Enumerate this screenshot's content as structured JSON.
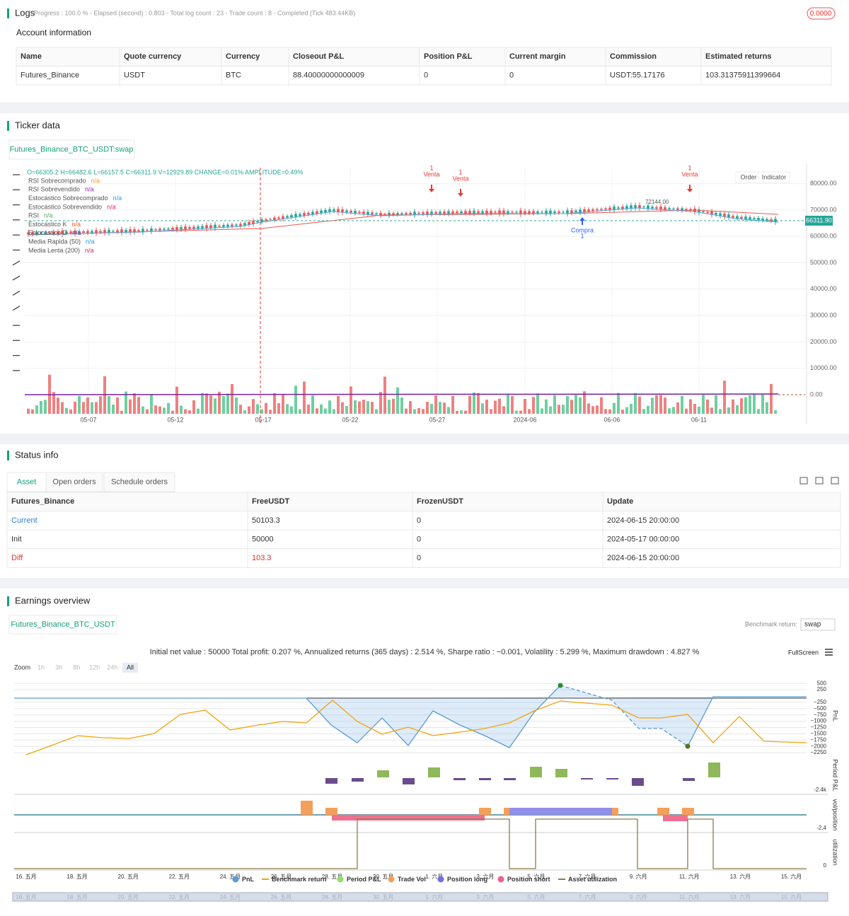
{
  "logs": {
    "title": "Logs",
    "status": "Progress : 100.0 % - Elapsed (second) : 0.803 - Total log count : 23 - Trade count : 8 - Completed (Tick 483.44KB)",
    "badge": "0.0000"
  },
  "account": {
    "title": "Account information",
    "columns": [
      "Name",
      "Quote currency",
      "Currency",
      "Closeout P&L",
      "Position P&L",
      "Current margin",
      "Commission",
      "Estimated returns"
    ],
    "rows": [
      [
        "Futures_Binance",
        "USDT",
        "BTC",
        "88.40000000000009",
        "0",
        "0",
        "USDT:55.17176",
        "103.31375911399664"
      ]
    ]
  },
  "ticker": {
    "title": "Ticker data",
    "tab": "Futures_Binance_BTC_USDT:swap",
    "ohlc": "O=66305.2 H=66482.6 L=66157.5 C=66311.9 V=12929.89 CHANGE=0.01% AMPLITUDE=0.49%",
    "buttons": [
      "Order",
      "Indicator"
    ],
    "legend": [
      {
        "name": "RSI Sobrecomprado",
        "value": "n/a"
      },
      {
        "name": "RSI Sobrevendido",
        "value": "n/a"
      },
      {
        "name": "Estocástico Sobrecomprado",
        "value": "n/a"
      },
      {
        "name": "Estocástico Sobrevendido",
        "value": "n/a"
      },
      {
        "name": "RSI",
        "value": "n/a"
      },
      {
        "name": "Estocástico K",
        "value": "n/a"
      },
      {
        "name": "Estocástico D",
        "value": "n/a"
      },
      {
        "name": "Media Rapida (50)",
        "value": "n/a"
      },
      {
        "name": "Media Lenta (200)",
        "value": "n/a"
      }
    ],
    "yticks": [
      {
        "value": 80000,
        "label": "80000.00"
      },
      {
        "value": 70000,
        "label": "70000.00"
      },
      {
        "value": 60000,
        "label": "60000.00"
      },
      {
        "value": 50000,
        "label": "50000.00"
      },
      {
        "value": 40000,
        "label": "40000.00"
      },
      {
        "value": 30000,
        "label": "30000.00"
      },
      {
        "value": 20000,
        "label": "20000.00"
      },
      {
        "value": 10000,
        "label": "10000.00"
      },
      {
        "value": 0,
        "label": "0.00"
      }
    ],
    "xticks": [
      "05-07",
      "05-12",
      "05-17",
      "05-22",
      "05-27",
      "2024-06",
      "06-06",
      "06-11"
    ],
    "price_tag": "66311.90",
    "high_label": "72144.00",
    "signals": [
      {
        "label": "Venta",
        "count": "1"
      },
      {
        "label": "Venta",
        "count": "1"
      },
      {
        "label": "Venta",
        "count": "1"
      },
      {
        "label": "Compra",
        "count": "1"
      }
    ]
  },
  "status": {
    "title": "Status info",
    "tabs": [
      "Asset",
      "Open orders",
      "Schedule orders"
    ],
    "columns": [
      "Futures_Binance",
      "FreeUSDT",
      "FrozenUSDT",
      "Update"
    ],
    "rows": [
      [
        "Current",
        "50103.3",
        "0",
        "2024-06-15 20:00:00"
      ],
      [
        "Init",
        "50000",
        "0",
        "2024-05-17 00:00:00"
      ],
      [
        "Diff",
        "103.3",
        "0",
        "2024-06-15 20:00:00"
      ]
    ]
  },
  "earnings": {
    "title": "Earnings overview",
    "tab": "Futures_Binance_BTC_USDT",
    "benchmark_label": "Benchmark return:",
    "benchmark_value": "swap",
    "summary": "Initial net value : 50000 Total profit: 0.207 %, Annualized returns (365 days) : 2.514 %, Sharpe ratio : −0.001, Volatility : 5.299 %, Maximum drawdown : 4.827 %",
    "fullscreen": "FullScreen",
    "zoom_label": "Zoom",
    "zoom_options": [
      "1h",
      "3h",
      "8h",
      "12h",
      "24h",
      "All"
    ],
    "pnl_yticks": [
      500,
      250,
      {
        "value": -250,
        "label": "−250"
      },
      {
        "value": -500,
        "label": "−500"
      },
      {
        "value": -750,
        "label": "−750"
      },
      {
        "value": -1000,
        "label": "−1000"
      },
      {
        "value": -1250,
        "label": "−1250"
      },
      {
        "value": -1500,
        "label": "−1500"
      },
      {
        "value": -1750,
        "label": "−1750"
      },
      {
        "value": -2000,
        "label": "−2000"
      },
      {
        "value": -2250,
        "label": "−2250"
      }
    ],
    "axis_titles": [
      "PnL",
      "Period P&L",
      "vol/position",
      "utilization"
    ],
    "period_tick": "-2.4k",
    "vol_tick": "-2.4",
    "util_tick": "0",
    "xticks": [
      "16. 五月",
      "18. 五月",
      "20. 五月",
      "22. 五月",
      "24. 五月",
      "26. 五月",
      "28. 五月",
      "30. 五月",
      "1. 六月",
      "3. 六月",
      "5. 六月",
      "7. 六月",
      "9. 六月",
      "11. 六月",
      "13. 六月",
      "15. 六月"
    ],
    "legend": [
      "PnL",
      "Benchmark return",
      "Period P&L",
      "Trade Vol",
      "Position long",
      "Position short",
      "Asset utilization"
    ]
  }
}
